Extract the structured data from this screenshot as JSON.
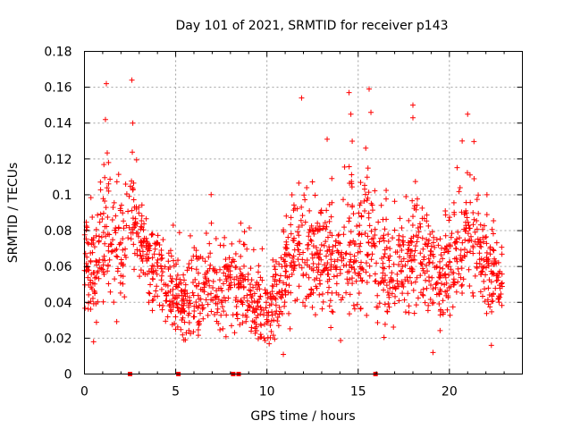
{
  "chart_data": {
    "type": "scatter",
    "title": "Day 101 of 2021, SRMTID for receiver p143",
    "xlabel": "GPS time / hours",
    "ylabel": "SRMTID / TECUs",
    "xlim": [
      0,
      24
    ],
    "ylim": [
      0,
      0.18
    ],
    "xticks": [
      0,
      5,
      10,
      15,
      20
    ],
    "xtick_labels": [
      "0",
      "5",
      "10",
      "15",
      "20"
    ],
    "yticks": [
      0,
      0.02,
      0.04,
      0.06,
      0.08,
      0.1,
      0.12,
      0.14,
      0.16,
      0.18
    ],
    "ytick_labels": [
      "0",
      "0.02",
      "0.04",
      "0.06",
      "0.08",
      "0.1",
      "0.12",
      "0.14",
      "0.16",
      "0.18"
    ],
    "grid": true,
    "marker": "+",
    "color": "#ff0000",
    "zero_value_hours": [
      2.5,
      5.15,
      8.15,
      8.45,
      15.95
    ],
    "series": [
      {
        "name": "SRMTID",
        "profile_hours": [
          0.0,
          0.5,
          1.0,
          1.3,
          1.6,
          2.0,
          2.5,
          3.0,
          3.5,
          4.0,
          4.5,
          5.0,
          5.5,
          6.0,
          6.5,
          7.0,
          7.5,
          8.0,
          8.5,
          9.0,
          9.5,
          10.0,
          10.5,
          11.0,
          11.5,
          12.0,
          12.5,
          13.0,
          13.5,
          14.0,
          14.5,
          15.0,
          15.5,
          16.0,
          16.5,
          17.0,
          17.5,
          18.0,
          18.5,
          19.0,
          19.5,
          20.0,
          20.5,
          21.0,
          21.5,
          22.0,
          22.5,
          22.9
        ],
        "profile_mean": [
          0.065,
          0.06,
          0.07,
          0.085,
          0.075,
          0.068,
          0.09,
          0.075,
          0.065,
          0.06,
          0.05,
          0.045,
          0.04,
          0.045,
          0.05,
          0.05,
          0.045,
          0.05,
          0.05,
          0.045,
          0.04,
          0.035,
          0.04,
          0.06,
          0.065,
          0.07,
          0.065,
          0.07,
          0.065,
          0.07,
          0.075,
          0.07,
          0.08,
          0.07,
          0.06,
          0.055,
          0.065,
          0.07,
          0.065,
          0.055,
          0.05,
          0.06,
          0.075,
          0.08,
          0.07,
          0.06,
          0.055,
          0.05
        ],
        "profile_spread": [
          0.018,
          0.02,
          0.025,
          0.03,
          0.025,
          0.02,
          0.025,
          0.018,
          0.016,
          0.016,
          0.015,
          0.014,
          0.014,
          0.015,
          0.016,
          0.016,
          0.015,
          0.016,
          0.016,
          0.015,
          0.015,
          0.014,
          0.018,
          0.02,
          0.022,
          0.022,
          0.02,
          0.022,
          0.02,
          0.022,
          0.03,
          0.025,
          0.03,
          0.025,
          0.02,
          0.018,
          0.02,
          0.025,
          0.02,
          0.018,
          0.017,
          0.02,
          0.022,
          0.025,
          0.02,
          0.018,
          0.017,
          0.015
        ],
        "point_count": 1650,
        "peaks": [
          {
            "x": 1.2,
            "y": 0.162
          },
          {
            "x": 2.6,
            "y": 0.164
          },
          {
            "x": 1.15,
            "y": 0.142
          },
          {
            "x": 2.65,
            "y": 0.14
          },
          {
            "x": 11.9,
            "y": 0.154
          },
          {
            "x": 14.5,
            "y": 0.157
          },
          {
            "x": 15.6,
            "y": 0.159
          },
          {
            "x": 14.6,
            "y": 0.145
          },
          {
            "x": 15.7,
            "y": 0.146
          },
          {
            "x": 18.0,
            "y": 0.15
          },
          {
            "x": 18.0,
            "y": 0.143
          },
          {
            "x": 21.0,
            "y": 0.145
          },
          {
            "x": 13.3,
            "y": 0.131
          },
          {
            "x": 20.7,
            "y": 0.13
          },
          {
            "x": 22.3,
            "y": 0.016
          },
          {
            "x": 19.1,
            "y": 0.012
          },
          {
            "x": 10.9,
            "y": 0.011
          },
          {
            "x": 0.5,
            "y": 0.018
          }
        ]
      }
    ]
  }
}
